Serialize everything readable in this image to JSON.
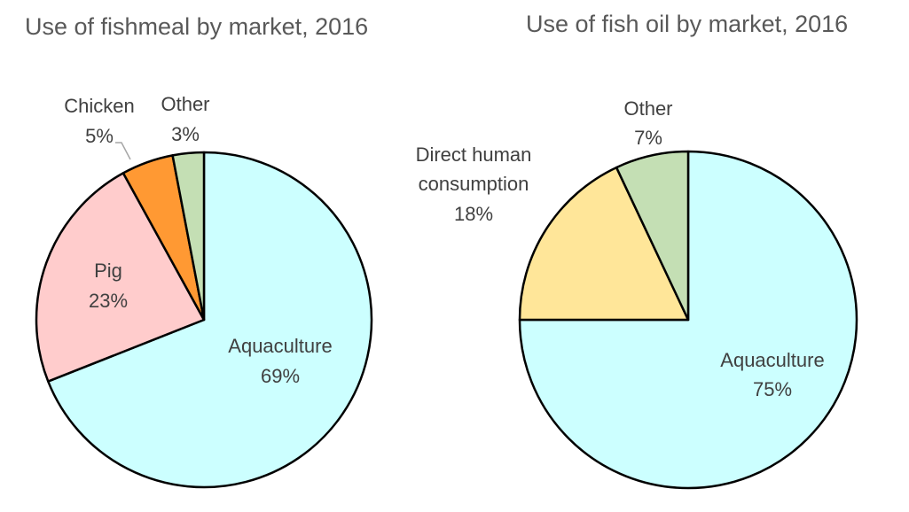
{
  "chart_data": [
    {
      "type": "pie",
      "title": "Use of fishmeal by market, 2016",
      "slices": [
        {
          "label": "Aquaculture",
          "value": 69,
          "value_label": "69%",
          "color": "#ccffff"
        },
        {
          "label": "Pig",
          "value": 23,
          "value_label": "23%",
          "color": "#ffcccc"
        },
        {
          "label": "Chicken",
          "value": 5,
          "value_label": "5%",
          "color": "#ff9933"
        },
        {
          "label": "Other",
          "value": 3,
          "value_label": "3%",
          "color": "#c4dfb4"
        }
      ]
    },
    {
      "type": "pie",
      "title": "Use of fish oil by market, 2016",
      "slices": [
        {
          "label": "Aquaculture",
          "value": 75,
          "value_label": "75%",
          "color": "#ccffff"
        },
        {
          "label": "Direct human consumption",
          "label_lines": [
            "Direct human",
            "consumption"
          ],
          "value": 18,
          "value_label": "18%",
          "color": "#ffe699"
        },
        {
          "label": "Other",
          "value": 7,
          "value_label": "7%",
          "color": "#c4dfb4"
        }
      ]
    }
  ]
}
